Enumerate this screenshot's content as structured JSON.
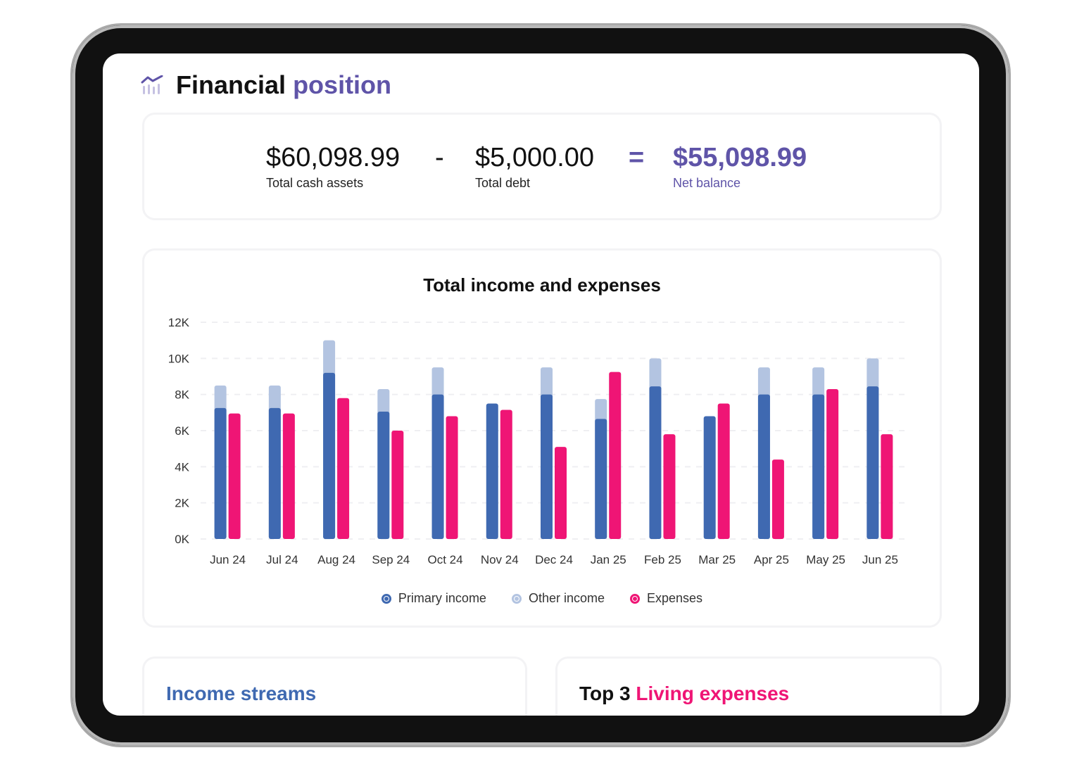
{
  "header": {
    "title_main": "Financial",
    "title_accent": "position",
    "icon": "chart-trend-icon"
  },
  "summary": {
    "cash_value": "$60,098.99",
    "cash_label": "Total cash assets",
    "minus": "-",
    "debt_value": "$5,000.00",
    "debt_label": "Total debt",
    "equals": "=",
    "net_value": "$55,098.99",
    "net_label": "Net balance"
  },
  "colors": {
    "accent": "#5f54a8",
    "primary_income": "#3f69b1",
    "other_income": "#b3c4e1",
    "expenses": "#ef1575"
  },
  "chart_data": {
    "type": "bar",
    "title": "Total income and expenses",
    "categories": [
      "Jun 24",
      "Jul 24",
      "Aug 24",
      "Sep 24",
      "Oct 24",
      "Nov 24",
      "Dec 24",
      "Jan 25",
      "Feb 25",
      "Mar 25",
      "Apr 25",
      "May 25",
      "Jun 25"
    ],
    "series": [
      {
        "name": "Primary income",
        "stack": "income",
        "values": [
          7250,
          7250,
          9200,
          7050,
          8000,
          7500,
          8000,
          6650,
          8450,
          6800,
          8000,
          8000,
          8450
        ]
      },
      {
        "name": "Other income",
        "stack": "income",
        "values": [
          1250,
          1250,
          1800,
          1250,
          1500,
          0,
          1500,
          1100,
          1550,
          0,
          1500,
          1500,
          1550
        ]
      },
      {
        "name": "Expenses",
        "stack": "expenses",
        "values": [
          6950,
          6950,
          7800,
          6000,
          6800,
          7150,
          5100,
          9250,
          5800,
          7500,
          4400,
          8300,
          5800
        ]
      }
    ],
    "yticks": [
      "0K",
      "2K",
      "4K",
      "6K",
      "8K",
      "10K",
      "12K"
    ],
    "ylim": [
      0,
      12000
    ],
    "grid": true,
    "legend": "bottom"
  },
  "bottom": {
    "income_title": "Income streams",
    "expenses_title_prefix": "Top 3",
    "expenses_title_accent": "Living expenses"
  }
}
